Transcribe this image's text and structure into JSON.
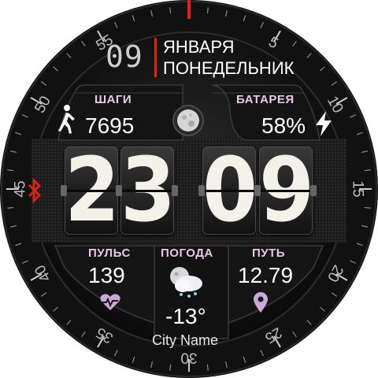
{
  "date": {
    "day": "09",
    "month": "ЯНВАРЯ",
    "weekday": "ПОНЕДЕЛЬНИК"
  },
  "steps": {
    "label": "ШАГИ",
    "value": "7695",
    "icon": "walking-person-icon"
  },
  "battery": {
    "label": "БАТАРЕЯ",
    "value": "58%",
    "icon": "lightning-bolt-icon"
  },
  "moon": {
    "icon": "moon-phase-icon"
  },
  "time": {
    "h1": "2",
    "h2": "3",
    "m1": "0",
    "m2": "9"
  },
  "bluetooth": {
    "icon": "bluetooth-icon",
    "color": "#e0201a"
  },
  "pulse": {
    "label": "ПУЛЬС",
    "value": "139",
    "icon": "heart-rate-icon"
  },
  "weather": {
    "label": "ПОГОДА",
    "temp": "-13°",
    "city": "City Name",
    "icon": "weather-snow-night-icon"
  },
  "distance": {
    "label": "ПУТЬ",
    "value": "12.79",
    "icon": "location-pin-icon"
  },
  "bezel": {
    "numbers": [
      "5",
      "10",
      "15",
      "20",
      "25",
      "30",
      "35",
      "40",
      "45",
      "50",
      "55"
    ]
  },
  "colors": {
    "accent_red": "#e0201a",
    "label_pink": "#e8c8e6",
    "icon_lilac": "#c9a9d6"
  }
}
